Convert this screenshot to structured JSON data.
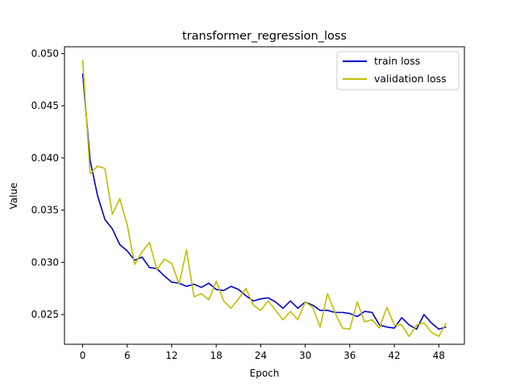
{
  "chart_data": {
    "type": "line",
    "title": "transformer_regression_loss",
    "xlabel": "Epoch",
    "ylabel": "Value",
    "xlim": [
      -2.45,
      51.45
    ],
    "ylim": [
      0.02215,
      0.05065
    ],
    "xticks": [
      0,
      6,
      12,
      18,
      24,
      30,
      36,
      42,
      48
    ],
    "yticks": [
      0.025,
      0.03,
      0.035,
      0.04,
      0.045,
      0.05
    ],
    "ytick_labels": [
      "0.025",
      "0.030",
      "0.035",
      "0.040",
      "0.045",
      "0.050"
    ],
    "grid": false,
    "legend_position": "top-right",
    "x": [
      0,
      1,
      2,
      3,
      4,
      5,
      6,
      7,
      8,
      9,
      10,
      11,
      12,
      13,
      14,
      15,
      16,
      17,
      18,
      19,
      20,
      21,
      22,
      23,
      24,
      25,
      26,
      27,
      28,
      29,
      30,
      31,
      32,
      33,
      34,
      35,
      36,
      37,
      38,
      39,
      40,
      41,
      42,
      43,
      44,
      45,
      46,
      47,
      48,
      49
    ],
    "series": [
      {
        "name": "train loss",
        "color": "#0000cc",
        "values": [
          0.0481,
          0.0398,
          0.0364,
          0.0341,
          0.0332,
          0.0317,
          0.0311,
          0.0302,
          0.0305,
          0.0295,
          0.0294,
          0.0287,
          0.0281,
          0.028,
          0.0277,
          0.0279,
          0.0276,
          0.028,
          0.0274,
          0.0273,
          0.0277,
          0.0274,
          0.0268,
          0.0263,
          0.0265,
          0.0266,
          0.0262,
          0.0256,
          0.0263,
          0.0256,
          0.0262,
          0.0259,
          0.0254,
          0.0254,
          0.0252,
          0.0252,
          0.0251,
          0.0248,
          0.0253,
          0.0252,
          0.024,
          0.0238,
          0.0237,
          0.0247,
          0.024,
          0.0236,
          0.025,
          0.0242,
          0.0236,
          0.0238
        ]
      },
      {
        "name": "validation loss",
        "color": "#bfbf00",
        "values": [
          0.0494,
          0.0385,
          0.0392,
          0.039,
          0.0346,
          0.0361,
          0.0336,
          0.0298,
          0.031,
          0.0319,
          0.0293,
          0.0303,
          0.0299,
          0.0279,
          0.0312,
          0.0267,
          0.027,
          0.0264,
          0.0282,
          0.0263,
          0.0256,
          0.0265,
          0.0275,
          0.0259,
          0.0254,
          0.0263,
          0.0254,
          0.0245,
          0.0253,
          0.0245,
          0.0262,
          0.0257,
          0.0238,
          0.027,
          0.0252,
          0.0237,
          0.0236,
          0.0262,
          0.0243,
          0.0245,
          0.0237,
          0.0257,
          0.024,
          0.024,
          0.0229,
          0.024,
          0.0242,
          0.0233,
          0.0229,
          0.0242
        ]
      }
    ]
  }
}
